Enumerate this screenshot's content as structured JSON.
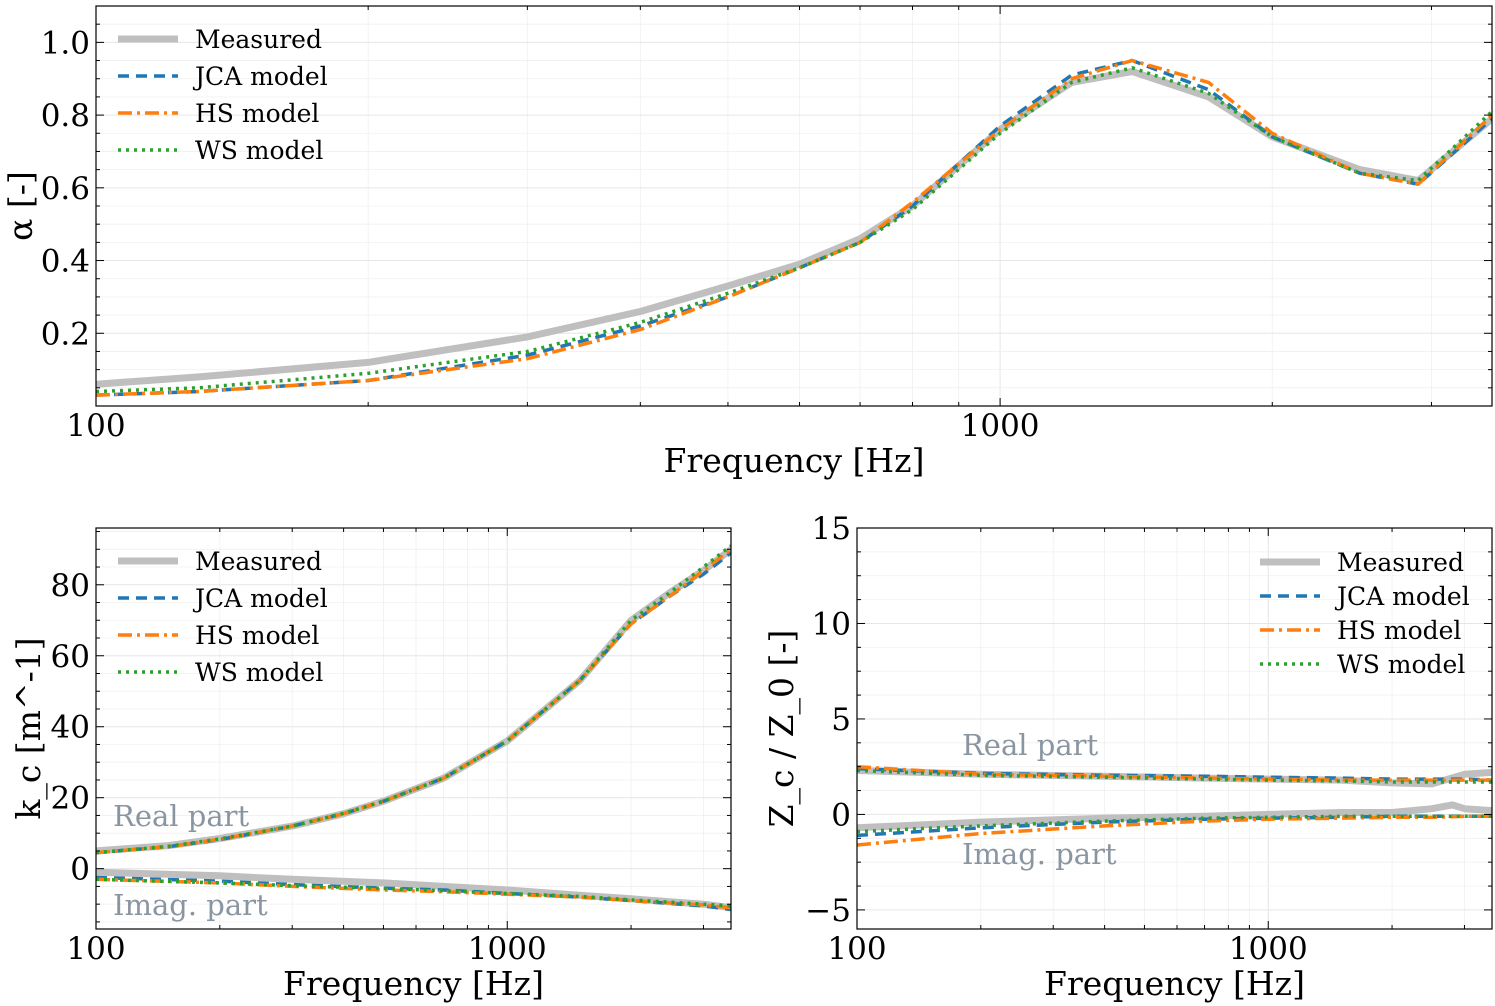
{
  "colors": {
    "measured": "#bfbfbf",
    "jca": "#1f77b4",
    "hs": "#ff7f0e",
    "ws": "#2ca02c",
    "annotation": "#8a95a2"
  },
  "legend": {
    "measured": "Measured",
    "jca": "JCA model",
    "hs": "HS model",
    "ws": "WS model"
  },
  "chart_data": [
    {
      "type": "line",
      "id": "alpha",
      "title": "",
      "xlabel": "Frequency [Hz]",
      "ylabel": "α [-]",
      "xscale": "log",
      "xlim": [
        100,
        3500
      ],
      "ylim": [
        0,
        1.1
      ],
      "xticks": [
        100,
        1000
      ],
      "xtick_labels": [
        "100",
        "1000"
      ],
      "yticks": [
        0.2,
        0.4,
        0.6,
        0.8,
        1.0
      ],
      "ytick_labels": [
        "0.2",
        "0.4",
        "0.6",
        "0.8",
        "1.0"
      ],
      "grid": true,
      "legend_position": "top-left",
      "series": [
        {
          "key": "measured",
          "name": "Measured",
          "x": [
            100,
            130,
            200,
            300,
            400,
            500,
            600,
            700,
            800,
            1000,
            1200,
            1400,
            1700,
            2000,
            2500,
            2900,
            3500
          ],
          "y": [
            0.06,
            0.08,
            0.12,
            0.19,
            0.26,
            0.33,
            0.39,
            0.46,
            0.55,
            0.76,
            0.89,
            0.92,
            0.85,
            0.74,
            0.65,
            0.62,
            0.79
          ]
        },
        {
          "key": "jca",
          "name": "JCA model",
          "x": [
            100,
            130,
            200,
            300,
            400,
            500,
            600,
            700,
            800,
            1000,
            1200,
            1400,
            1700,
            2000,
            2500,
            2900,
            3500
          ],
          "y": [
            0.03,
            0.04,
            0.07,
            0.14,
            0.22,
            0.3,
            0.38,
            0.45,
            0.55,
            0.77,
            0.91,
            0.95,
            0.87,
            0.74,
            0.64,
            0.61,
            0.79
          ]
        },
        {
          "key": "hs",
          "name": "HS model",
          "x": [
            100,
            130,
            200,
            300,
            400,
            500,
            600,
            700,
            800,
            1000,
            1200,
            1400,
            1700,
            2000,
            2500,
            2900,
            3500
          ],
          "y": [
            0.03,
            0.04,
            0.07,
            0.13,
            0.21,
            0.3,
            0.38,
            0.45,
            0.56,
            0.76,
            0.9,
            0.95,
            0.89,
            0.75,
            0.64,
            0.61,
            0.8
          ]
        },
        {
          "key": "ws",
          "name": "WS model",
          "x": [
            100,
            130,
            200,
            300,
            400,
            500,
            600,
            700,
            800,
            1000,
            1200,
            1400,
            1700,
            2000,
            2500,
            2900,
            3500
          ],
          "y": [
            0.04,
            0.05,
            0.09,
            0.15,
            0.23,
            0.31,
            0.38,
            0.45,
            0.54,
            0.75,
            0.89,
            0.93,
            0.86,
            0.74,
            0.64,
            0.62,
            0.81
          ]
        }
      ]
    },
    {
      "type": "line",
      "id": "kc",
      "title": "",
      "xlabel": "Frequency [Hz]",
      "ylabel": "k_c [m^-1]",
      "xscale": "log",
      "xlim": [
        100,
        3500
      ],
      "ylim": [
        -17,
        96
      ],
      "xticks": [
        100,
        1000
      ],
      "xtick_labels": [
        "100",
        "1000"
      ],
      "yticks": [
        0,
        20,
        40,
        60,
        80
      ],
      "ytick_labels": [
        "0",
        "20",
        "40",
        "60",
        "80"
      ],
      "grid": true,
      "legend_position": "top-left",
      "annotations": [
        {
          "text": "Real part",
          "x": 110,
          "y": 12
        },
        {
          "text": "Imag. part",
          "x": 110,
          "y": -13
        }
      ],
      "series": [
        {
          "key": "measured",
          "name": "Measured",
          "part": "real",
          "x": [
            100,
            150,
            200,
            300,
            400,
            500,
            700,
            1000,
            1500,
            2000,
            2500,
            3000,
            3500
          ],
          "y": [
            5,
            6.5,
            8.5,
            12,
            15.5,
            19,
            25.5,
            36,
            53,
            70,
            78,
            84,
            90
          ]
        },
        {
          "key": "jca",
          "name": "JCA model",
          "part": "real",
          "x": [
            100,
            150,
            200,
            300,
            400,
            500,
            700,
            1000,
            1500,
            2000,
            2500,
            3000,
            3500
          ],
          "y": [
            4.5,
            6.2,
            8.2,
            12,
            15.5,
            19,
            25.5,
            36,
            53,
            69,
            77,
            83,
            89
          ]
        },
        {
          "key": "hs",
          "name": "HS model",
          "part": "real",
          "x": [
            100,
            150,
            200,
            300,
            400,
            500,
            700,
            1000,
            1500,
            2000,
            2500,
            3000,
            3500
          ],
          "y": [
            4.5,
            6.2,
            8.3,
            12,
            15.5,
            19,
            25.5,
            36,
            53,
            69,
            77,
            84,
            90
          ]
        },
        {
          "key": "ws",
          "name": "WS model",
          "part": "real",
          "x": [
            100,
            150,
            200,
            300,
            400,
            500,
            700,
            1000,
            1500,
            2000,
            2500,
            3000,
            3500
          ],
          "y": [
            4.5,
            6.3,
            8.4,
            12,
            15.6,
            19,
            25.5,
            36,
            53,
            70,
            78,
            85,
            91
          ]
        },
        {
          "key": "measured",
          "name": "Measured",
          "part": "imag",
          "x": [
            100,
            200,
            300,
            500,
            700,
            1000,
            1500,
            2000,
            3000,
            3500
          ],
          "y": [
            -1,
            -2,
            -3,
            -4,
            -5,
            -6,
            -7.5,
            -8.5,
            -10,
            -11
          ]
        },
        {
          "key": "jca",
          "name": "JCA model",
          "part": "imag",
          "x": [
            100,
            200,
            300,
            500,
            700,
            1000,
            1500,
            2000,
            3000,
            3500
          ],
          "y": [
            -2.5,
            -3.5,
            -4.5,
            -5.5,
            -6,
            -7,
            -8,
            -9,
            -10.5,
            -11.5
          ]
        },
        {
          "key": "hs",
          "name": "HS model",
          "part": "imag",
          "x": [
            100,
            200,
            300,
            500,
            700,
            1000,
            1500,
            2000,
            3000,
            3500
          ],
          "y": [
            -3,
            -4,
            -5,
            -6,
            -6.5,
            -7.2,
            -8,
            -9,
            -10.2,
            -11
          ]
        },
        {
          "key": "ws",
          "name": "WS model",
          "part": "imag",
          "x": [
            100,
            200,
            300,
            500,
            700,
            1000,
            1500,
            2000,
            3000,
            3500
          ],
          "y": [
            -3,
            -4,
            -4.8,
            -5.6,
            -6.2,
            -7,
            -7.8,
            -8.8,
            -10,
            -10.5
          ]
        }
      ]
    },
    {
      "type": "line",
      "id": "zc",
      "title": "",
      "xlabel": "Frequency [Hz]",
      "ylabel": "Z_c / Z_0 [-]",
      "xscale": "log",
      "xlim": [
        100,
        3500
      ],
      "ylim": [
        -6,
        15
      ],
      "xticks": [
        100,
        1000
      ],
      "xtick_labels": [
        "100",
        "1000"
      ],
      "yticks": [
        -5,
        0,
        5,
        10,
        15
      ],
      "ytick_labels": [
        "−5",
        "0",
        "5",
        "10",
        "15"
      ],
      "grid": true,
      "legend_position": "top-right",
      "annotations": [
        {
          "text": "Real part",
          "x": 180,
          "y": 3.1
        },
        {
          "text": "Imag. part",
          "x": 180,
          "y": -2.6
        }
      ],
      "series": [
        {
          "key": "measured",
          "name": "Measured",
          "part": "real",
          "x": [
            100,
            200,
            400,
            700,
            1000,
            1500,
            2000,
            2500,
            3000,
            3500
          ],
          "y": [
            2.3,
            2.1,
            2.0,
            1.9,
            1.85,
            1.8,
            1.65,
            1.6,
            2.1,
            2.2
          ]
        },
        {
          "key": "jca",
          "name": "JCA model",
          "part": "real",
          "x": [
            100,
            200,
            400,
            700,
            1000,
            1500,
            2000,
            2500,
            3000,
            3500
          ],
          "y": [
            2.4,
            2.15,
            2.05,
            2.0,
            1.95,
            1.9,
            1.85,
            1.85,
            1.85,
            1.8
          ]
        },
        {
          "key": "hs",
          "name": "HS model",
          "part": "real",
          "x": [
            100,
            200,
            400,
            700,
            1000,
            1500,
            2000,
            2500,
            3000,
            3500
          ],
          "y": [
            2.5,
            2.1,
            2.0,
            1.9,
            1.85,
            1.8,
            1.8,
            1.8,
            1.8,
            1.8
          ]
        },
        {
          "key": "ws",
          "name": "WS model",
          "part": "real",
          "x": [
            100,
            200,
            400,
            700,
            1000,
            1500,
            2000,
            2500,
            3000,
            3500
          ],
          "y": [
            2.3,
            2.05,
            1.95,
            1.85,
            1.8,
            1.75,
            1.7,
            1.7,
            1.7,
            1.7
          ]
        },
        {
          "key": "measured",
          "name": "Measured",
          "part": "imag",
          "x": [
            100,
            200,
            400,
            700,
            1000,
            1500,
            2000,
            2500,
            2800,
            3000,
            3500
          ],
          "y": [
            -0.7,
            -0.4,
            -0.2,
            -0.1,
            0,
            0.1,
            0.1,
            0.3,
            0.5,
            0.3,
            0.2
          ]
        },
        {
          "key": "jca",
          "name": "JCA model",
          "part": "imag",
          "x": [
            100,
            200,
            400,
            700,
            1000,
            1500,
            2000,
            2500,
            3000,
            3500
          ],
          "y": [
            -1.1,
            -0.7,
            -0.4,
            -0.25,
            -0.2,
            -0.15,
            -0.1,
            -0.1,
            -0.1,
            -0.1
          ]
        },
        {
          "key": "hs",
          "name": "HS model",
          "part": "imag",
          "x": [
            100,
            200,
            400,
            700,
            1000,
            1500,
            2000,
            2500,
            3000,
            3500
          ],
          "y": [
            -1.6,
            -1.0,
            -0.6,
            -0.35,
            -0.25,
            -0.2,
            -0.15,
            -0.15,
            -0.1,
            -0.1
          ]
        },
        {
          "key": "ws",
          "name": "WS model",
          "part": "imag",
          "x": [
            100,
            200,
            400,
            700,
            1000,
            1500,
            2000,
            2500,
            3000,
            3500
          ],
          "y": [
            -0.9,
            -0.6,
            -0.35,
            -0.2,
            -0.15,
            -0.1,
            -0.1,
            -0.1,
            -0.1,
            -0.1
          ]
        }
      ]
    }
  ]
}
